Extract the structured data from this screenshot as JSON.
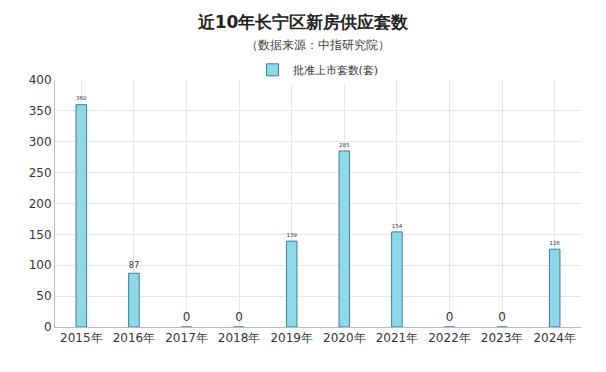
{
  "chart_data": {
    "type": "bar",
    "title": "近10年长宁区新房供应套数",
    "subtitle": "（数据来源：中指研究院）",
    "categories": [
      "2015年",
      "2016年",
      "2017年",
      "2018年",
      "2019年",
      "2020年",
      "2021年",
      "2022年",
      "2023年",
      "2024年"
    ],
    "series": [
      {
        "name": "批准上市套数(套)",
        "color": "#8fd8ea",
        "values": [
          360,
          87,
          0,
          0,
          139,
          285,
          154,
          0,
          0,
          126
        ]
      }
    ],
    "ylim": [
      0,
      400
    ],
    "yticks": [
      0,
      50,
      100,
      150,
      200,
      250,
      300,
      350,
      400
    ],
    "grid": true,
    "legend": "top",
    "data_labels": true
  }
}
